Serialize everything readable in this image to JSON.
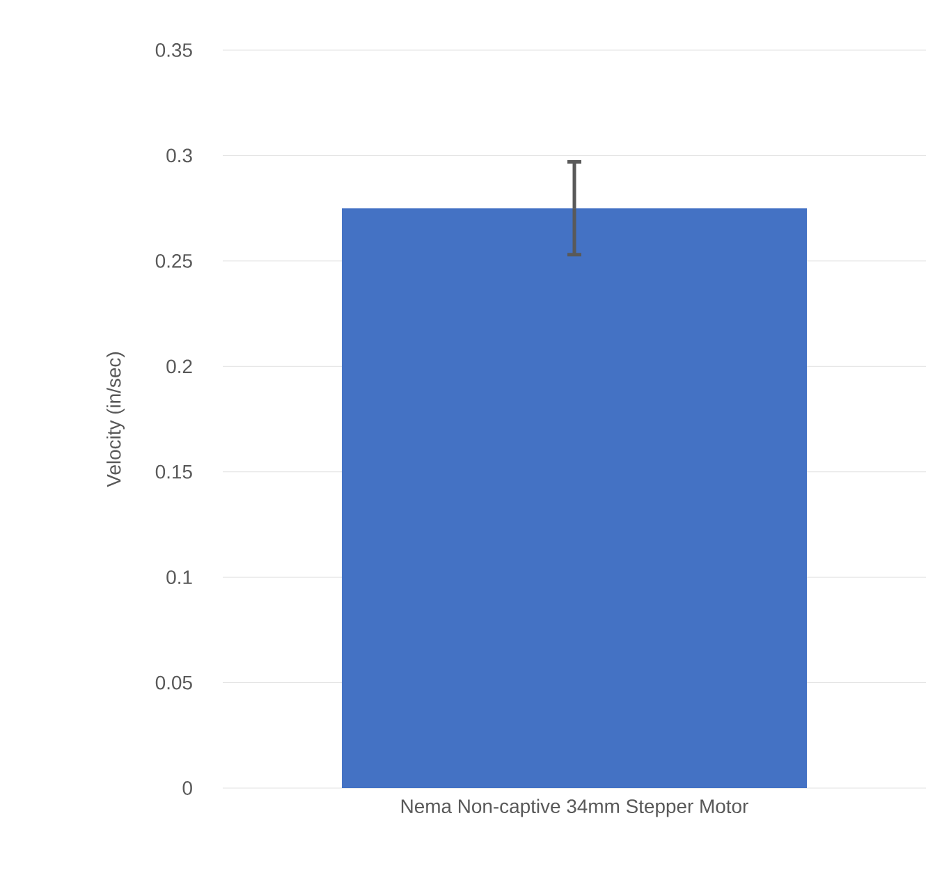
{
  "chart_data": {
    "type": "bar",
    "ylabel": "Velocity (in/sec)",
    "categories": [
      "Nema Non-captive 34mm Stepper Motor"
    ],
    "values": [
      0.275
    ],
    "errors": [
      0.022
    ],
    "color": "#4472c4",
    "ylim": [
      0,
      0.35
    ],
    "yticks": [
      0,
      0.05,
      0.1,
      0.15,
      0.2,
      0.25,
      0.3,
      0.35
    ],
    "grid": "y"
  }
}
